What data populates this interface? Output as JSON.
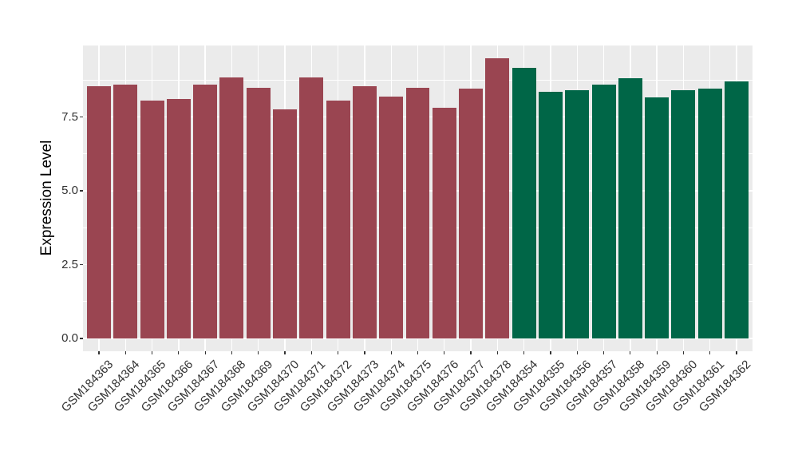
{
  "chart_data": {
    "type": "bar",
    "title": "",
    "xlabel": "",
    "ylabel": "Expression Level",
    "ylim": [
      0,
      9.92
    ],
    "y_major_ticks": [
      0,
      2.5,
      5,
      7.5
    ],
    "y_tick_labels": [
      "0.0",
      "2.5",
      "5.0",
      "7.5"
    ],
    "y_minor_gridlines": [
      1.25,
      3.75,
      6.25,
      8.75
    ],
    "grid": "white horizontal major+minor lines and vertical major lines at bar centers on grey panel",
    "legend_position": "none",
    "x_tick_label_rotation_deg": 45,
    "categories": [
      "GSM184363",
      "GSM184364",
      "GSM184365",
      "GSM184366",
      "GSM184367",
      "GSM184368",
      "GSM184369",
      "GSM184370",
      "GSM184371",
      "GSM184372",
      "GSM184373",
      "GSM184374",
      "GSM184375",
      "GSM184376",
      "GSM184377",
      "GSM184378",
      "GSM184354",
      "GSM184355",
      "GSM184356",
      "GSM184357",
      "GSM184358",
      "GSM184359",
      "GSM184360",
      "GSM184361",
      "GSM184362"
    ],
    "values": [
      8.55,
      8.6,
      8.05,
      8.1,
      8.6,
      8.85,
      8.5,
      7.75,
      8.85,
      8.05,
      8.55,
      8.2,
      8.5,
      7.8,
      8.45,
      9.5,
      9.15,
      8.35,
      8.4,
      8.6,
      8.8,
      8.15,
      8.4,
      8.45,
      8.7
    ],
    "groups": [
      {
        "name": "group-1-maroon",
        "color": "#9A4551",
        "start_index": 0,
        "count": 16
      },
      {
        "name": "group-2-green",
        "color": "#006647",
        "start_index": 16,
        "count": 9
      }
    ],
    "colors": {
      "panel_background": "#EBEBEB",
      "figure_background": "#FFFFFF",
      "gridline": "#FFFFFF",
      "tick_label": "#333333",
      "axis_title": "#000000",
      "tick_mark": "#333333"
    }
  }
}
